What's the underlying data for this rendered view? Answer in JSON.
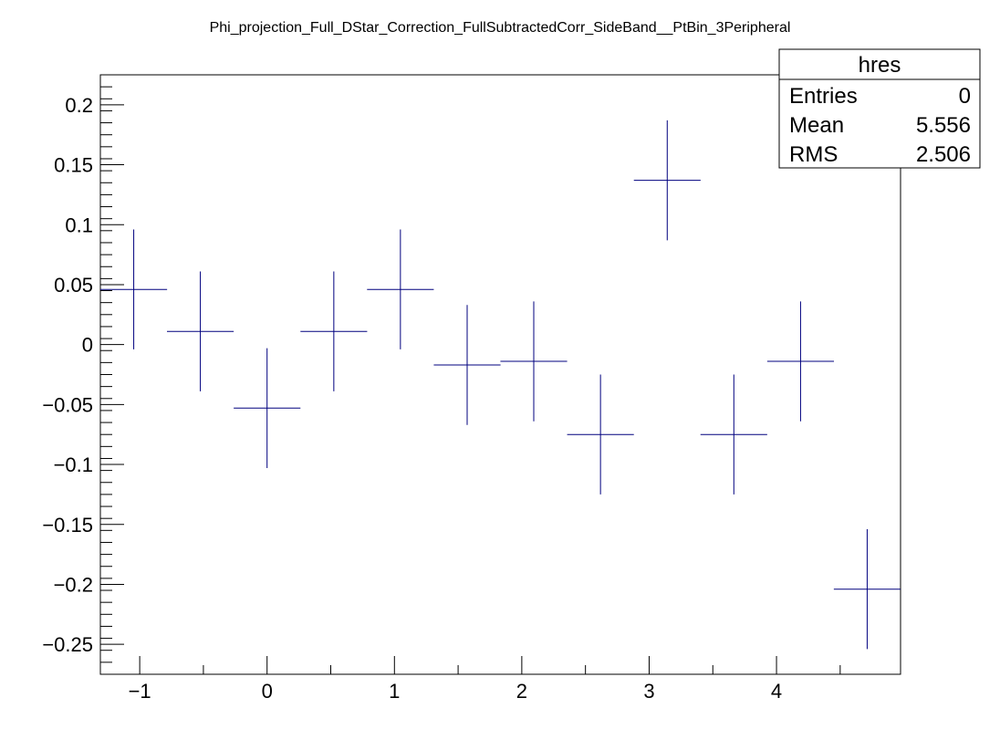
{
  "chart_data": {
    "type": "scatter",
    "title": "Phi_projection_Full_DStar_Correction_FullSubtractedCorr_SideBand__PtBin_3Peripheral",
    "xlabel": "",
    "ylabel": "",
    "xlim": [
      -1.309,
      4.974
    ],
    "ylim": [
      -0.275,
      0.225
    ],
    "x_ticks": [
      -1,
      0,
      1,
      2,
      3,
      4
    ],
    "x_tick_labels": [
      "−1",
      "0",
      "1",
      "2",
      "3",
      "4"
    ],
    "y_ticks": [
      -0.25,
      -0.2,
      -0.15,
      -0.1,
      -0.05,
      0,
      0.05,
      0.1,
      0.15,
      0.2
    ],
    "y_tick_labels": [
      "−0.25",
      "−0.2",
      "−0.15",
      "−0.1",
      "−0.05",
      "0",
      "0.05",
      "0.1",
      "0.15",
      "0.2"
    ],
    "grid": false,
    "legend": "none",
    "series": [
      {
        "color": "#00007f",
        "points": [
          {
            "x": -1.047,
            "y": 0.046,
            "yerr": 0.05,
            "xerr": 0.262
          },
          {
            "x": -0.524,
            "y": 0.011,
            "yerr": 0.05,
            "xerr": 0.262
          },
          {
            "x": 0.0,
            "y": -0.053,
            "yerr": 0.05,
            "xerr": 0.262
          },
          {
            "x": 0.524,
            "y": 0.011,
            "yerr": 0.05,
            "xerr": 0.262
          },
          {
            "x": 1.047,
            "y": 0.046,
            "yerr": 0.05,
            "xerr": 0.262
          },
          {
            "x": 1.571,
            "y": -0.017,
            "yerr": 0.05,
            "xerr": 0.262
          },
          {
            "x": 2.094,
            "y": -0.014,
            "yerr": 0.05,
            "xerr": 0.262
          },
          {
            "x": 2.618,
            "y": -0.075,
            "yerr": 0.05,
            "xerr": 0.262
          },
          {
            "x": 3.142,
            "y": 0.137,
            "yerr": 0.05,
            "xerr": 0.262
          },
          {
            "x": 3.665,
            "y": -0.075,
            "yerr": 0.05,
            "xerr": 0.262
          },
          {
            "x": 4.189,
            "y": -0.014,
            "yerr": 0.05,
            "xerr": 0.262
          },
          {
            "x": 4.712,
            "y": -0.204,
            "yerr": 0.05,
            "xerr": 0.262
          }
        ]
      }
    ]
  },
  "stats_box": {
    "title": "hres",
    "rows": [
      {
        "label": "Entries",
        "value": "0"
      },
      {
        "label": "Mean",
        "value": "5.556"
      },
      {
        "label": "RMS",
        "value": "2.506"
      }
    ]
  }
}
